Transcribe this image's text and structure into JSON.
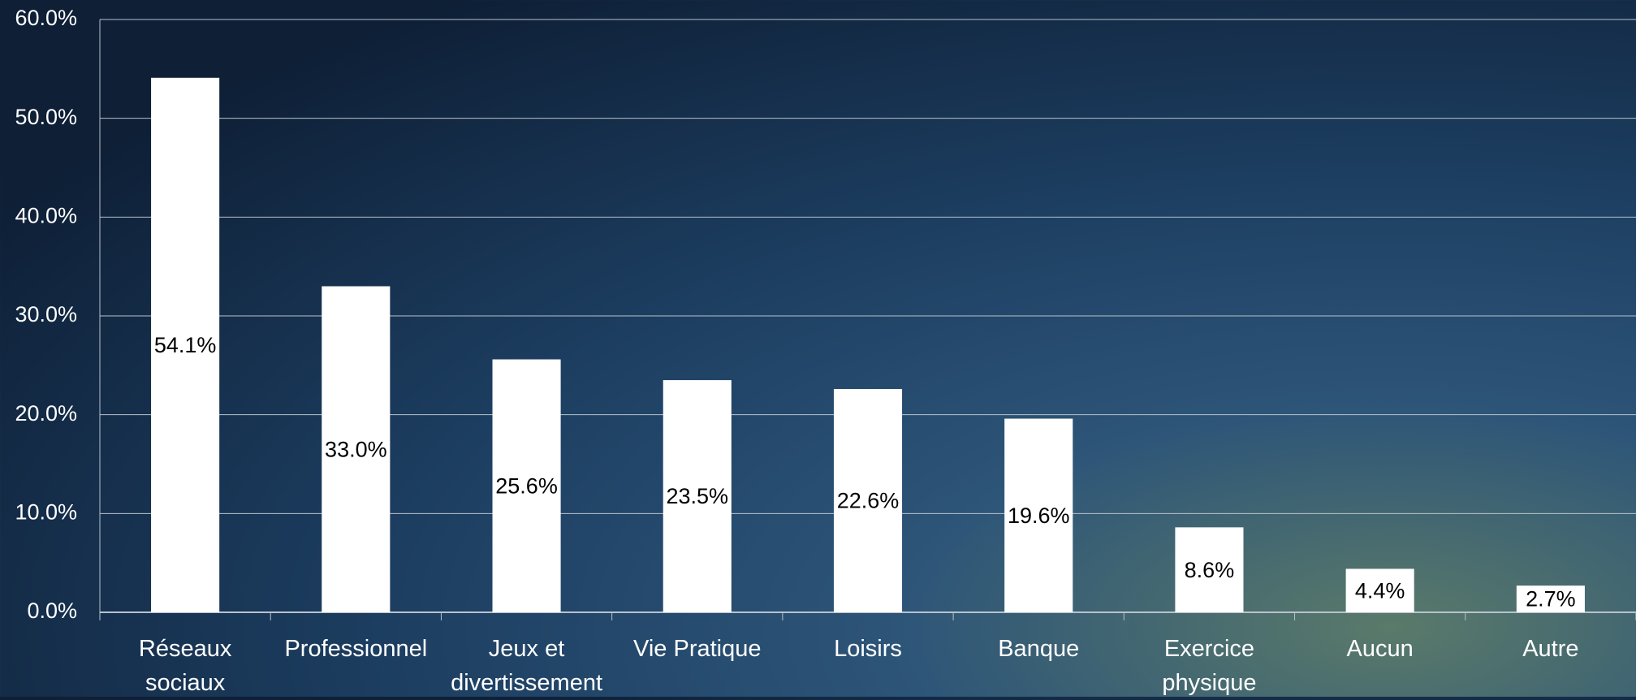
{
  "chart_data": {
    "type": "bar",
    "categories": [
      "Réseaux sociaux",
      "Professionnel",
      "Jeux et divertissement",
      "Vie Pratique",
      "Loisirs",
      "Banque",
      "Exercice physique",
      "Aucun",
      "Autre"
    ],
    "values": [
      54.1,
      33.0,
      25.6,
      23.5,
      22.6,
      19.6,
      8.6,
      4.4,
      2.7
    ],
    "value_labels": [
      "54.1%",
      "33.0%",
      "25.6%",
      "23.5%",
      "22.6%",
      "19.6%",
      "8.6%",
      "4.4%",
      "2.7%"
    ],
    "color": "#ffffff",
    "ylim": [
      0,
      60
    ],
    "yticks": [
      {
        "value": 0,
        "label": "0.0%"
      },
      {
        "value": 10,
        "label": "10.0%"
      },
      {
        "value": 20,
        "label": "20.0%"
      },
      {
        "value": 30,
        "label": "30.0%"
      },
      {
        "value": 40,
        "label": "40.0%"
      },
      {
        "value": 50,
        "label": "50.0%"
      },
      {
        "value": 60,
        "label": "60.0%"
      }
    ],
    "grid": true
  }
}
